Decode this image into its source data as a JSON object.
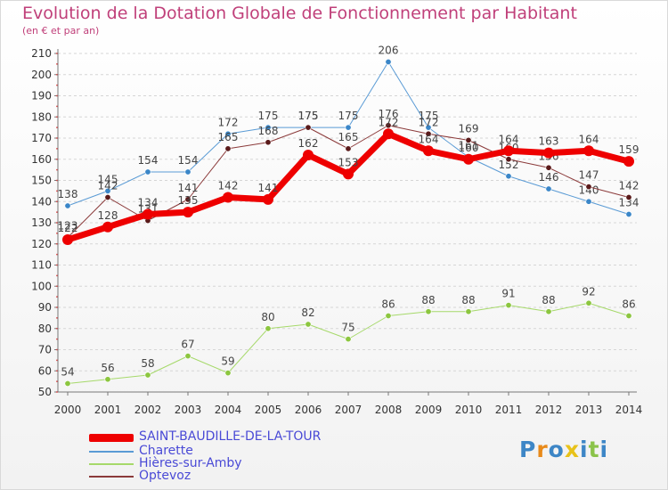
{
  "title": "Evolution de la Dotation Globale de Fonctionnement par Habitant",
  "subtitle": "(en € et par an)",
  "logo": {
    "text": "Proxiti",
    "letters": [
      "P",
      "r",
      "o",
      "x",
      "i",
      "t",
      "i"
    ],
    "colors": [
      "#3d86c6",
      "#e88a1a",
      "#3d86c6",
      "#e8c21a",
      "#3d86c6",
      "#8bc34a",
      "#3d86c6"
    ]
  },
  "chart_data": {
    "type": "line",
    "title": "Evolution de la Dotation Globale de Fonctionnement par Habitant",
    "subtitle": "(en € et par an)",
    "x": [
      "2000",
      "2001",
      "2002",
      "2003",
      "2004",
      "2005",
      "2006",
      "2007",
      "2008",
      "2009",
      "2010",
      "2011",
      "2012",
      "2013",
      "2014"
    ],
    "ylim": [
      50,
      210
    ],
    "yticks": [
      "50",
      "60",
      "70",
      "80",
      "90",
      "100",
      "110",
      "120",
      "130",
      "140",
      "150",
      "160",
      "170",
      "180",
      "190",
      "200",
      "210"
    ],
    "grid": "horizontal dashed",
    "legend_position": "bottom-left",
    "series": [
      {
        "name": "Charette",
        "color": "#5a9bd5",
        "marker": "#3a86c8",
        "width": 1,
        "values": [
          138,
          145,
          154,
          154,
          172,
          175,
          175,
          175,
          206,
          175,
          161,
          152,
          146,
          140,
          134
        ],
        "labels": [
          "138",
          "145",
          "154",
          "154",
          "172",
          "175",
          "175",
          "175",
          "206",
          "175",
          "161",
          "152",
          "146",
          "140",
          "134"
        ]
      },
      {
        "name": "Optevoz",
        "color": "#8b3a3a",
        "marker": "#5a1a1a",
        "width": 1,
        "values": [
          123,
          142,
          131,
          141,
          165,
          168,
          175,
          165,
          176,
          172,
          169,
          160,
          156,
          147,
          142
        ],
        "labels": [
          "123",
          "142",
          "131",
          "141",
          "165",
          "168",
          "175",
          "165",
          "176",
          "172",
          "169",
          "160",
          "156",
          "147",
          "142"
        ]
      },
      {
        "name": "Hières-sur-Amby",
        "color": "#a6d96a",
        "marker": "#8cc63f",
        "width": 1,
        "values": [
          54,
          56,
          58,
          67,
          59,
          80,
          82,
          75,
          86,
          88,
          88,
          91,
          88,
          92,
          86
        ],
        "labels": [
          "54",
          "56",
          "58",
          "67",
          "59",
          "80",
          "82",
          "75",
          "86",
          "88",
          "88",
          "91",
          "88",
          "92",
          "86"
        ]
      },
      {
        "name": "SAINT-BAUDILLE-DE-LA-TOUR",
        "color": "#ee0000",
        "marker": "#ee0000",
        "width": 7,
        "values": [
          122,
          128,
          134,
          135,
          142,
          141,
          162,
          153,
          172,
          164,
          160,
          164,
          163,
          164,
          159
        ],
        "labels": [
          "122",
          "128",
          "134",
          "135",
          "142",
          "141",
          "162",
          "153",
          "172",
          "164",
          "160",
          "164",
          "163",
          "164",
          "159"
        ]
      }
    ]
  },
  "legend": [
    {
      "label": "SAINT-BAUDILLE-DE-LA-TOUR",
      "color": "#ee0000",
      "thick": true
    },
    {
      "label": "Charette",
      "color": "#5a9bd5",
      "thick": false
    },
    {
      "label": "Hières-sur-Amby",
      "color": "#a6d96a",
      "thick": false
    },
    {
      "label": "Optevoz",
      "color": "#8b3a3a",
      "thick": false
    }
  ]
}
